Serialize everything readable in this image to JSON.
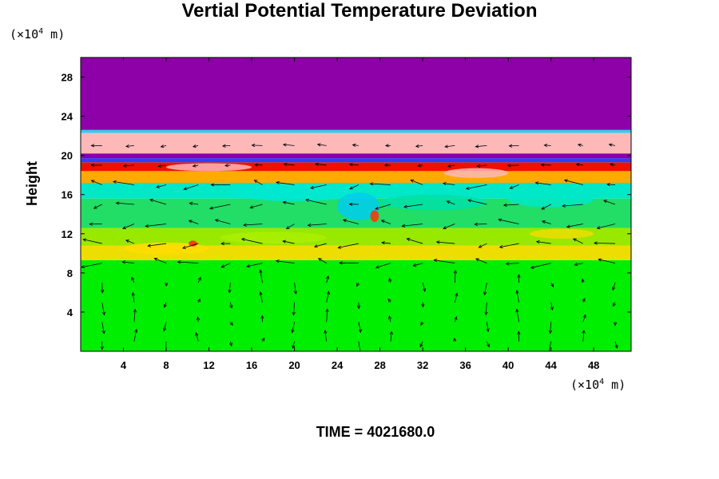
{
  "chart_data": {
    "type": "heatmap",
    "title": "Vertial Potential Temperature Deviation",
    "ylabel": "Height",
    "x_unit": {
      "prefix": "(×10",
      "exp": "4",
      "suffix": " m)"
    },
    "y_unit": {
      "prefix": "(×10",
      "exp": "4",
      "suffix": " m)"
    },
    "time_label": "TIME = 4021680.0",
    "xlim": [
      0,
      51.5
    ],
    "ylim": [
      0,
      30
    ],
    "x_ticks": [
      4,
      8,
      12,
      16,
      20,
      24,
      28,
      32,
      36,
      40,
      44,
      48
    ],
    "y_ticks": [
      4,
      8,
      12,
      16,
      20,
      24,
      28
    ],
    "layers": [
      {
        "y0": 0,
        "y1": 9.3,
        "color": "#00ee00",
        "desc": "lower troposphere"
      },
      {
        "y0": 9.3,
        "y1": 10.8,
        "color": "#eedd00",
        "desc": "yellow band"
      },
      {
        "y0": 10.8,
        "y1": 12.6,
        "color": "#99e800",
        "desc": "yellow-green band"
      },
      {
        "y0": 12.6,
        "y1": 15.6,
        "color": "#22dd66",
        "desc": "green band"
      },
      {
        "y0": 15.6,
        "y1": 17.2,
        "color": "#00e8c8",
        "desc": "cyan band"
      },
      {
        "y0": 17.2,
        "y1": 18.4,
        "color": "#ffaa00",
        "desc": "orange band"
      },
      {
        "y0": 18.4,
        "y1": 19.3,
        "color": "#ee1100",
        "desc": "red band"
      },
      {
        "y0": 19.3,
        "y1": 19.7,
        "color": "#2244ff",
        "desc": "blue line"
      },
      {
        "y0": 19.7,
        "y1": 20.2,
        "color": "#8800aa",
        "desc": "purple line"
      },
      {
        "y0": 20.2,
        "y1": 22.3,
        "color": "#ffb8b8",
        "desc": "pink band"
      },
      {
        "y0": 22.3,
        "y1": 22.6,
        "color": "#33ccee",
        "desc": "cyan line"
      },
      {
        "y0": 22.6,
        "y1": 30,
        "color": "#8e00a8",
        "desc": "upper purple"
      }
    ],
    "blobs": [
      {
        "x": 20,
        "y": 16.2,
        "rx": 6,
        "ry": 0.9,
        "color": "#00e8d0"
      },
      {
        "x": 33,
        "y": 15.2,
        "rx": 5,
        "ry": 0.8,
        "color": "#00e0a8"
      },
      {
        "x": 26,
        "y": 14.8,
        "rx": 2,
        "ry": 1.4,
        "color": "#00ccee"
      },
      {
        "x": 44,
        "y": 15.5,
        "rx": 4,
        "ry": 0.8,
        "color": "#00e8c8"
      },
      {
        "x": 8,
        "y": 10.5,
        "rx": 4,
        "ry": 0.6,
        "color": "#ffdd00"
      },
      {
        "x": 18,
        "y": 11.6,
        "rx": 5,
        "ry": 0.6,
        "color": "#aaee00"
      },
      {
        "x": 10.5,
        "y": 11.0,
        "rx": 0.4,
        "ry": 0.3,
        "color": "#ff2200"
      },
      {
        "x": 27.5,
        "y": 13.8,
        "rx": 0.4,
        "ry": 0.6,
        "color": "#ff3300"
      },
      {
        "x": 37,
        "y": 18.2,
        "rx": 3,
        "ry": 0.5,
        "color": "#ffb8b8"
      },
      {
        "x": 12,
        "y": 18.8,
        "rx": 4,
        "ry": 0.4,
        "color": "#ffb8b8"
      },
      {
        "x": 45,
        "y": 12.0,
        "rx": 3,
        "ry": 0.5,
        "color": "#eedd00"
      }
    ],
    "vectors": {
      "columns": [
        2,
        5,
        8,
        11,
        14,
        17,
        20,
        23,
        26,
        29,
        32,
        35,
        38,
        41,
        44,
        47,
        50
      ],
      "rows": [
        1,
        3,
        5,
        7,
        9,
        11,
        13,
        15,
        17,
        19,
        21
      ],
      "note": "wind field arrows"
    },
    "legend": "none",
    "grid": false
  }
}
